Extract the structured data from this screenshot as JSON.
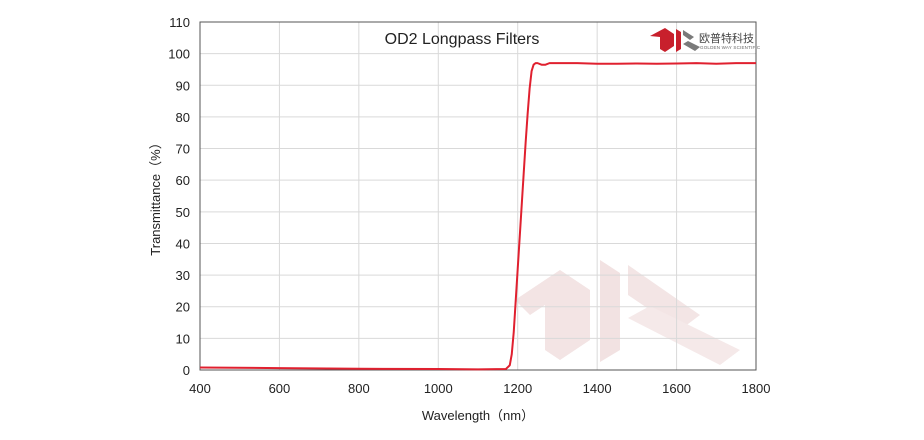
{
  "chart_data": {
    "type": "line",
    "title": "OD2  Longpass Filters",
    "xlabel": "Wavelength（nm）",
    "ylabel": "Transmittance（%）",
    "xlim": [
      400,
      1800
    ],
    "ylim": [
      0,
      110
    ],
    "x_ticks": [
      400,
      600,
      800,
      1000,
      1200,
      1400,
      1600,
      1800
    ],
    "y_ticks": [
      0,
      10,
      20,
      30,
      40,
      50,
      60,
      70,
      80,
      90,
      100,
      110
    ],
    "grid": true,
    "legend": "none",
    "series": [
      {
        "color": "#e0202f",
        "x": [
          400,
          600,
          800,
          1000,
          1100,
          1170,
          1180,
          1185,
          1190,
          1195,
          1200,
          1205,
          1210,
          1215,
          1220,
          1225,
          1230,
          1235,
          1240,
          1245,
          1250,
          1260,
          1270,
          1280,
          1300,
          1350,
          1400,
          1450,
          1500,
          1550,
          1600,
          1650,
          1700,
          1750,
          1800
        ],
        "y": [
          0.8,
          0.6,
          0.4,
          0.3,
          0.2,
          0.3,
          1.5,
          5,
          12,
          22,
          32,
          42,
          52,
          62,
          72,
          81,
          89,
          94.5,
          96.5,
          97,
          97,
          96.5,
          96.5,
          97,
          97,
          97,
          96.8,
          96.8,
          96.9,
          96.8,
          96.9,
          97,
          96.8,
          97,
          97
        ]
      }
    ]
  },
  "logo": {
    "name": "欧普特科技",
    "subtitle": "GOLDEN WAY SCIENTIFIC"
  },
  "colors": {
    "line": "#e0202f",
    "logo_red": "#c8202c",
    "logo_gray": "#7a7a7a",
    "watermark": "#f3e4e4"
  }
}
